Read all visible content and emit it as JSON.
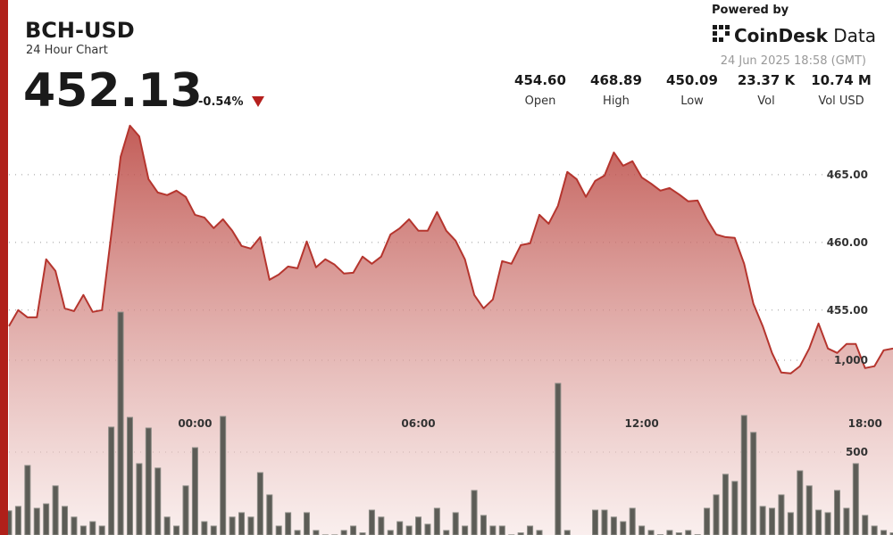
{
  "header": {
    "title": "BCH-USD",
    "subtitle": "24 Hour Chart",
    "price": "452.13",
    "change": "-0.54%",
    "powered": "Powered by",
    "brand": "CoinDesk",
    "brand_suffix": "Data",
    "date": "24 Jun 2025 18:58 (GMT)",
    "stats": [
      {
        "value": "454.60",
        "label": "Open"
      },
      {
        "value": "468.89",
        "label": "High"
      },
      {
        "value": "450.09",
        "label": "Low"
      },
      {
        "value": "23.37 K",
        "label": "Vol"
      },
      {
        "value": "10.74 M",
        "label": "Vol USD"
      }
    ]
  },
  "chart_data": {
    "type": "line",
    "categories": [
      null,
      null,
      null,
      null,
      null,
      null,
      null,
      null,
      null,
      null,
      null,
      null,
      null,
      null,
      null,
      null,
      null,
      null,
      null,
      null,
      "00:00",
      null,
      null,
      null,
      null,
      null,
      null,
      null,
      null,
      null,
      null,
      null,
      null,
      null,
      null,
      null,
      null,
      null,
      null,
      null,
      null,
      null,
      null,
      null,
      "06:00",
      null,
      null,
      null,
      null,
      null,
      null,
      null,
      null,
      null,
      null,
      null,
      null,
      null,
      null,
      null,
      null,
      null,
      null,
      null,
      null,
      null,
      null,
      null,
      "12:00",
      null,
      null,
      null,
      null,
      null,
      null,
      null,
      null,
      null,
      null,
      null,
      null,
      null,
      null,
      null,
      null,
      null,
      null,
      null,
      null,
      null,
      null,
      null,
      "18:00",
      null,
      null,
      null
    ],
    "series": [
      {
        "color": "#b5352e",
        "values": [
          453.82,
          455.0,
          454.47,
          454.47,
          458.75,
          457.89,
          455.13,
          454.93,
          456.12,
          454.87,
          455.0,
          460.59,
          466.32,
          468.62,
          467.83,
          464.67,
          463.68,
          463.49,
          463.82,
          463.36,
          462.04,
          461.84,
          461.05,
          461.71,
          460.86,
          459.74,
          459.54,
          460.39,
          457.24,
          457.63,
          458.22,
          458.09,
          460.07,
          458.16,
          458.75,
          458.36,
          457.7,
          457.76,
          458.95,
          458.42,
          458.95,
          460.59,
          461.05,
          461.71,
          460.86,
          460.86,
          462.24,
          460.86,
          460.13,
          458.75,
          456.12,
          455.13,
          455.79,
          458.62,
          458.42,
          459.8,
          459.93,
          462.04,
          461.38,
          462.7,
          465.2,
          464.67,
          463.36,
          464.54,
          464.93,
          466.64,
          465.66,
          465.99,
          464.8,
          464.34,
          463.82,
          464.01,
          463.55,
          463.03,
          463.09,
          461.71,
          460.59,
          460.39,
          460.33,
          458.42,
          455.46,
          453.82,
          451.84,
          450.39,
          450.33,
          450.86,
          452.17,
          454.01,
          452.17,
          451.84,
          452.5,
          452.5,
          450.72,
          450.86,
          452.04,
          452.17
        ]
      },
      {
        "type": "bar",
        "axis": "y2",
        "color": "#5c5c56",
        "values": [
          180,
          204,
          427,
          194,
          218,
          316,
          204,
          146,
          97,
          121,
          97,
          636,
          1262,
          689,
          437,
          631,
          413,
          146,
          97,
          316,
          524,
          121,
          97,
          694,
          146,
          170,
          146,
          388,
          267,
          97,
          170,
          73,
          170,
          73,
          49,
          49,
          73,
          97,
          60,
          184,
          146,
          73,
          121,
          97,
          146,
          107,
          194,
          73,
          170,
          97,
          291,
          155,
          97,
          97,
          49,
          60,
          97,
          73,
          40,
          874,
          73,
          30,
          40,
          184,
          184,
          146,
          121,
          194,
          97,
          73,
          50,
          73,
          60,
          73,
          50,
          194,
          267,
          379,
          340,
          699,
          607,
          204,
          194,
          267,
          170,
          398,
          316,
          184,
          170,
          291,
          194,
          437,
          155,
          97,
          73,
          60
        ]
      }
    ],
    "ylim": [
      438.4,
      469.6
    ],
    "yticks": [
      {
        "value": 455,
        "label": "455.00"
      },
      {
        "value": 460,
        "label": "460.00"
      },
      {
        "value": 465,
        "label": "465.00"
      }
    ],
    "y2lim": [
      48.5,
      2350
    ],
    "y2ticks": [
      500,
      {
        "value": 1000,
        "label": "1,000"
      }
    ],
    "grid": true
  }
}
